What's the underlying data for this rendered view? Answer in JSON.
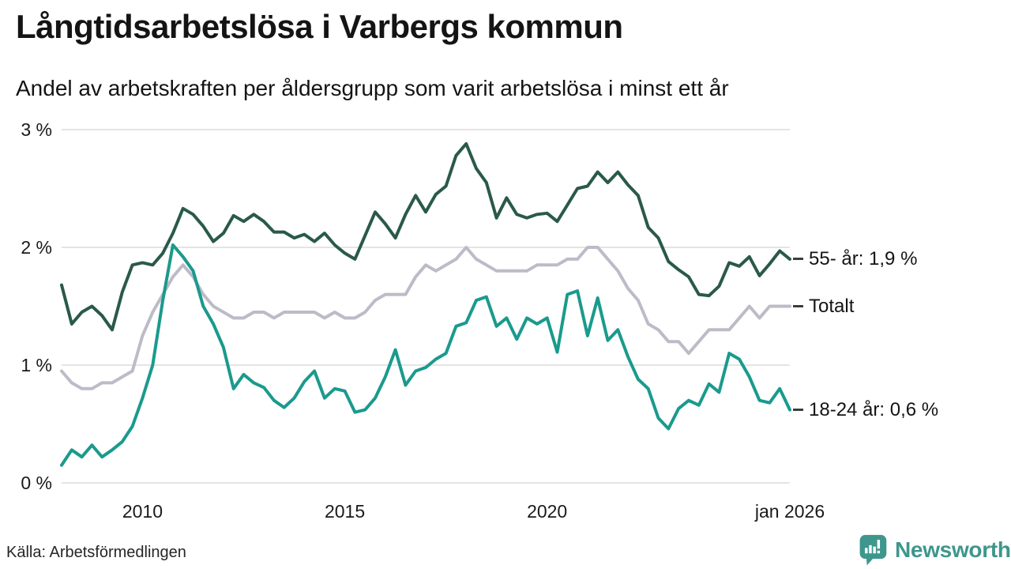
{
  "header": {
    "title": "Långtidsarbetslösa i Varbergs kommun",
    "subtitle": "Andel av arbetskraften per åldersgrupp som varit arbetslösa i minst ett år"
  },
  "chart_data": {
    "type": "line",
    "title": "Långtidsarbetslösa i Varbergs kommun",
    "subtitle": "Andel av arbetskraften per åldersgrupp som varit arbetslösa i minst ett år",
    "unit": "% av arbetskraften",
    "grid": "horizontal",
    "legend_position": "end-of-line-labels",
    "x_start": 2008.0,
    "x_step": 0.25,
    "xlim": [
      2008,
      2026
    ],
    "ylim": [
      0,
      3.05
    ],
    "y_tick_values": [
      3,
      2,
      1,
      0
    ],
    "y_tick_labels": [
      "3 %",
      "2 %",
      "1 %",
      "0 %"
    ],
    "x_tick_values": [
      2010,
      2015,
      2020,
      2026
    ],
    "x_tick_labels": [
      "2010",
      "2015",
      "2020",
      "jan 2026"
    ],
    "grid_color": "#dcdcdc",
    "series": [
      {
        "name": "55- år",
        "end_label": "55- år: 1,9 %",
        "last_value_text": "1,9 %",
        "color": "#2a594b",
        "values": [
          1.68,
          1.35,
          1.45,
          1.5,
          1.42,
          1.3,
          1.62,
          1.85,
          1.87,
          1.85,
          1.95,
          2.12,
          2.33,
          2.28,
          2.18,
          2.05,
          2.12,
          2.27,
          2.22,
          2.28,
          2.22,
          2.13,
          2.13,
          2.08,
          2.11,
          2.05,
          2.12,
          2.02,
          1.95,
          1.9,
          2.1,
          2.3,
          2.2,
          2.08,
          2.28,
          2.44,
          2.3,
          2.45,
          2.52,
          2.78,
          2.88,
          2.67,
          2.55,
          2.25,
          2.42,
          2.28,
          2.25,
          2.28,
          2.29,
          2.22,
          2.36,
          2.5,
          2.52,
          2.64,
          2.55,
          2.64,
          2.53,
          2.44,
          2.17,
          2.08,
          1.88,
          1.81,
          1.75,
          1.6,
          1.59,
          1.67,
          1.87,
          1.84,
          1.92,
          1.76,
          1.86,
          1.97,
          1.9
        ]
      },
      {
        "name": "Totalt",
        "end_label": "Totalt",
        "last_value_text": "1,5 %",
        "color": "#bdbbc7",
        "values": [
          0.95,
          0.85,
          0.8,
          0.8,
          0.85,
          0.85,
          0.9,
          0.95,
          1.25,
          1.45,
          1.6,
          1.75,
          1.85,
          1.75,
          1.6,
          1.5,
          1.45,
          1.4,
          1.4,
          1.45,
          1.45,
          1.4,
          1.45,
          1.45,
          1.45,
          1.45,
          1.4,
          1.45,
          1.4,
          1.4,
          1.45,
          1.55,
          1.6,
          1.6,
          1.6,
          1.75,
          1.85,
          1.8,
          1.85,
          1.9,
          2.0,
          1.9,
          1.85,
          1.8,
          1.8,
          1.8,
          1.8,
          1.85,
          1.85,
          1.85,
          1.9,
          1.9,
          2.0,
          2.0,
          1.9,
          1.8,
          1.65,
          1.55,
          1.35,
          1.3,
          1.2,
          1.2,
          1.1,
          1.2,
          1.3,
          1.3,
          1.3,
          1.4,
          1.5,
          1.4,
          1.5,
          1.5,
          1.5
        ]
      },
      {
        "name": "18-24 år",
        "end_label": "18-24 år: 0,6 %",
        "last_value_text": "0,6 %",
        "color": "#1a9a8d",
        "values": [
          0.15,
          0.28,
          0.22,
          0.32,
          0.22,
          0.28,
          0.35,
          0.48,
          0.72,
          1.0,
          1.55,
          2.02,
          1.92,
          1.8,
          1.5,
          1.35,
          1.15,
          0.8,
          0.92,
          0.85,
          0.81,
          0.7,
          0.64,
          0.72,
          0.86,
          0.95,
          0.72,
          0.8,
          0.78,
          0.6,
          0.62,
          0.72,
          0.9,
          1.13,
          0.83,
          0.95,
          0.98,
          1.05,
          1.1,
          1.33,
          1.36,
          1.55,
          1.58,
          1.33,
          1.4,
          1.22,
          1.4,
          1.35,
          1.4,
          1.11,
          1.6,
          1.63,
          1.25,
          1.57,
          1.21,
          1.3,
          1.07,
          0.88,
          0.8,
          0.55,
          0.46,
          0.63,
          0.7,
          0.66,
          0.84,
          0.77,
          1.1,
          1.05,
          0.9,
          0.7,
          0.68,
          0.8,
          0.62
        ]
      }
    ]
  },
  "footer": {
    "source": "Källa: Arbetsförmedlingen",
    "brand": "Newsworthy"
  }
}
